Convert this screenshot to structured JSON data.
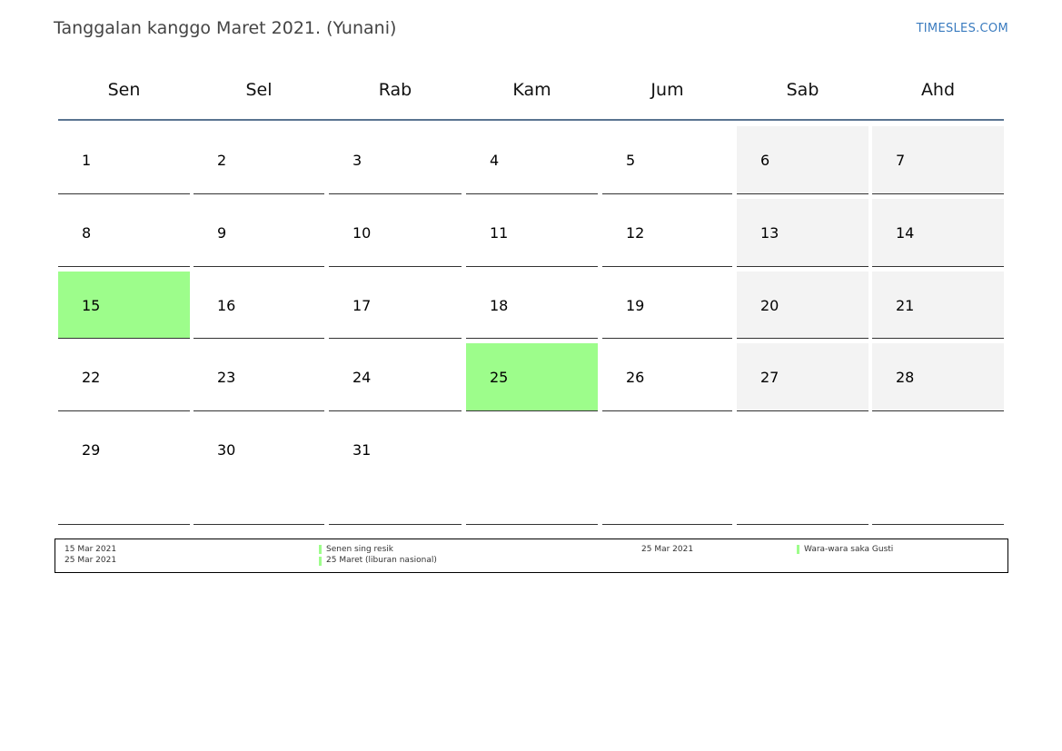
{
  "header": {
    "title": "Tanggalan kanggo Maret 2021. (Yunani)",
    "brand": "TIMESLES.COM"
  },
  "weekdays": [
    "Sen",
    "Sel",
    "Rab",
    "Kam",
    "Jum",
    "Sab",
    "Ahd"
  ],
  "weeks": [
    [
      "1",
      "2",
      "3",
      "4",
      "5",
      "6",
      "7"
    ],
    [
      "8",
      "9",
      "10",
      "11",
      "12",
      "13",
      "14"
    ],
    [
      "15",
      "16",
      "17",
      "18",
      "19",
      "20",
      "21"
    ],
    [
      "22",
      "23",
      "24",
      "25",
      "26",
      "27",
      "28"
    ],
    [
      "29",
      "30",
      "31",
      "",
      "",
      "",
      ""
    ]
  ],
  "colors": {
    "holiday": "#9dfd8b",
    "weekend": "#f3f3f3",
    "header_rule": "#5a7491",
    "brand": "#3a7bbf"
  },
  "holiday_days": [
    "15",
    "25"
  ],
  "legend": {
    "left": {
      "dates": [
        "15 Mar 2021",
        "25 Mar 2021"
      ],
      "names": [
        "Senen sing resik",
        "25 Maret (liburan nasional)"
      ]
    },
    "right": {
      "dates": [
        "25 Mar 2021"
      ],
      "names": [
        "Wara-wara saka Gusti"
      ]
    }
  }
}
